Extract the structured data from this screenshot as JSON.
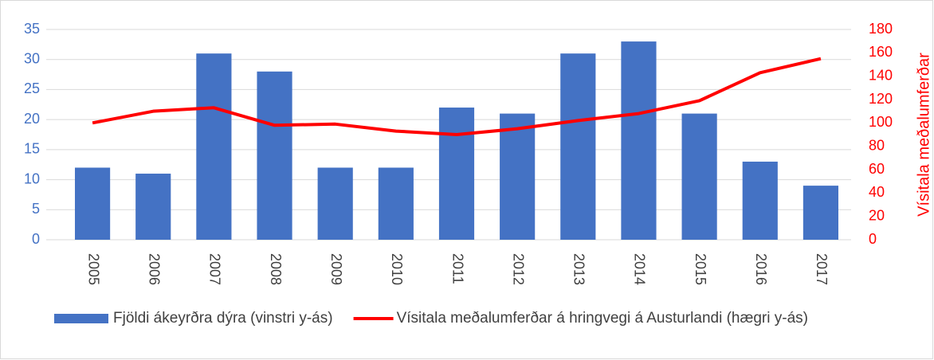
{
  "chart_data": {
    "type": "bar_line",
    "categories": [
      "2005",
      "2006",
      "2007",
      "2008",
      "2009",
      "2010",
      "2011",
      "2012",
      "2013",
      "2014",
      "2015",
      "2016",
      "2017"
    ],
    "series": [
      {
        "name": "Fjöldi ákeyrðra dýra (vinstri y-ás)",
        "type": "bar",
        "color": "#4472c4",
        "axis": "y",
        "values": [
          12,
          11,
          31,
          28,
          12,
          12,
          22,
          21,
          31,
          33,
          21,
          13,
          9
        ]
      },
      {
        "name": "Vísitala meðalumferðar á hringvegi á Austurlandi (hægri y-ás)",
        "type": "line",
        "color": "#ff0000",
        "axis": "y2",
        "values": [
          100,
          110,
          113,
          98,
          99,
          93,
          90,
          95,
          102,
          108,
          119,
          143,
          155
        ]
      }
    ],
    "ylim": [
      0,
      35
    ],
    "yticks": [
      0,
      5,
      10,
      15,
      20,
      25,
      30,
      35
    ],
    "y2lim": [
      0,
      180
    ],
    "y2ticks": [
      0,
      20,
      40,
      60,
      80,
      100,
      120,
      140,
      160,
      180
    ],
    "y2label": "Vísitala meðalumferðar",
    "grid": true,
    "legend": "bottom"
  }
}
